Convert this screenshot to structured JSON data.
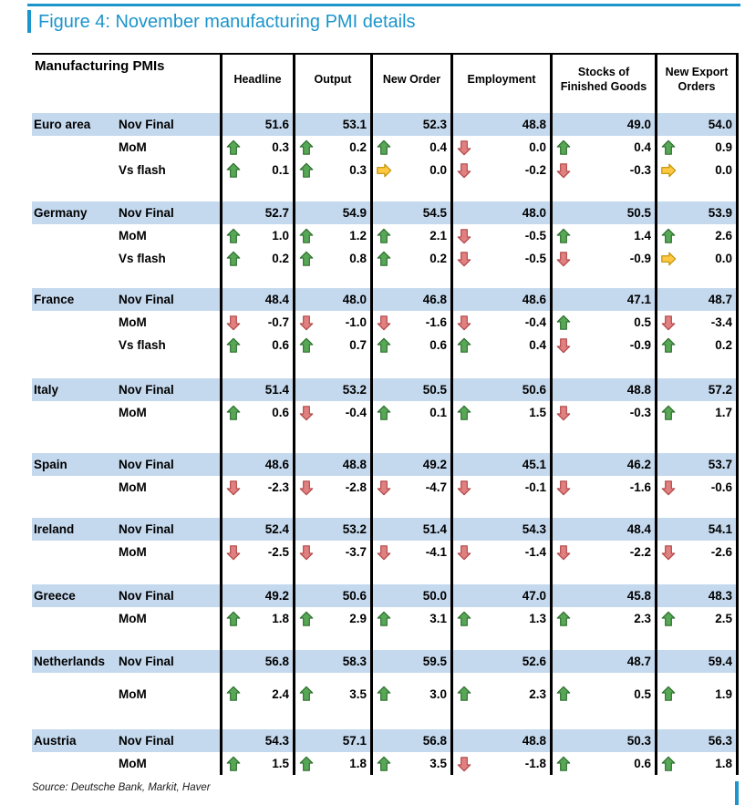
{
  "figure": {
    "title": "Figure 4: November manufacturing PMI details",
    "source": "Source: Deutsche Bank, Markit, Haver"
  },
  "colors": {
    "accent_blue": "#1b95cc",
    "row_stripe_blue": "#c5d9ee",
    "arrow_up_fill": "#57a757",
    "arrow_up_stroke": "#2e6f2e",
    "arrow_down_fill": "#e08080",
    "arrow_down_stroke": "#b34747",
    "arrow_right_fill": "#ffc843",
    "arrow_right_stroke": "#bf8f00"
  },
  "table": {
    "corner_label": "Manufacturing PMIs",
    "column_headers": [
      "Headline",
      "Output",
      "New Order",
      "Employment",
      "Stocks of\nFinished Goods",
      "New Export\nOrders"
    ],
    "blocks": [
      {
        "country": "Euro area",
        "rows": [
          {
            "label": "Nov Final",
            "highlight": true,
            "cells": [
              {
                "value": "51.6"
              },
              {
                "value": "53.1"
              },
              {
                "value": "52.3"
              },
              {
                "value": "48.8"
              },
              {
                "value": "49.0"
              },
              {
                "value": "54.0"
              }
            ]
          },
          {
            "label": "MoM",
            "cells": [
              {
                "arrow": "up",
                "value": "0.3"
              },
              {
                "arrow": "up",
                "value": "0.2"
              },
              {
                "arrow": "up",
                "value": "0.4"
              },
              {
                "arrow": "down",
                "value": "0.0"
              },
              {
                "arrow": "up",
                "value": "0.4"
              },
              {
                "arrow": "up",
                "value": "0.9"
              }
            ]
          },
          {
            "label": "Vs flash",
            "cells": [
              {
                "arrow": "up",
                "value": "0.1"
              },
              {
                "arrow": "up",
                "value": "0.3"
              },
              {
                "arrow": "right",
                "value": "0.0"
              },
              {
                "arrow": "down",
                "value": "-0.2"
              },
              {
                "arrow": "down",
                "value": "-0.3"
              },
              {
                "arrow": "right",
                "value": "0.0"
              }
            ]
          }
        ]
      },
      {
        "country": "Germany",
        "rows": [
          {
            "label": "Nov Final",
            "highlight": true,
            "cells": [
              {
                "value": "52.7"
              },
              {
                "value": "54.9"
              },
              {
                "value": "54.5"
              },
              {
                "value": "48.0"
              },
              {
                "value": "50.5"
              },
              {
                "value": "53.9"
              }
            ]
          },
          {
            "label": "MoM",
            "cells": [
              {
                "arrow": "up",
                "value": "1.0"
              },
              {
                "arrow": "up",
                "value": "1.2"
              },
              {
                "arrow": "up",
                "value": "2.1"
              },
              {
                "arrow": "down",
                "value": "-0.5"
              },
              {
                "arrow": "up",
                "value": "1.4"
              },
              {
                "arrow": "up",
                "value": "2.6"
              }
            ]
          },
          {
            "label": "Vs flash",
            "cells": [
              {
                "arrow": "up",
                "value": "0.2"
              },
              {
                "arrow": "up",
                "value": "0.8"
              },
              {
                "arrow": "up",
                "value": "0.2"
              },
              {
                "arrow": "down",
                "value": "-0.5"
              },
              {
                "arrow": "down",
                "value": "-0.9"
              },
              {
                "arrow": "right",
                "value": "0.0"
              }
            ]
          }
        ]
      },
      {
        "country": "France",
        "rows": [
          {
            "label": "Nov Final",
            "highlight": true,
            "cells": [
              {
                "value": "48.4"
              },
              {
                "value": "48.0"
              },
              {
                "value": "46.8"
              },
              {
                "value": "48.6"
              },
              {
                "value": "47.1"
              },
              {
                "value": "48.7"
              }
            ]
          },
          {
            "label": "MoM",
            "cells": [
              {
                "arrow": "down",
                "value": "-0.7"
              },
              {
                "arrow": "down",
                "value": "-1.0"
              },
              {
                "arrow": "down",
                "value": "-1.6"
              },
              {
                "arrow": "down",
                "value": "-0.4"
              },
              {
                "arrow": "up",
                "value": "0.5"
              },
              {
                "arrow": "down",
                "value": "-3.4"
              }
            ]
          },
          {
            "label": "Vs flash",
            "cells": [
              {
                "arrow": "up",
                "value": "0.6"
              },
              {
                "arrow": "up",
                "value": "0.7"
              },
              {
                "arrow": "up",
                "value": "0.6"
              },
              {
                "arrow": "up",
                "value": "0.4"
              },
              {
                "arrow": "down",
                "value": "-0.9"
              },
              {
                "arrow": "up",
                "value": "0.2"
              }
            ]
          }
        ]
      },
      {
        "country": "Italy",
        "rows": [
          {
            "label": "Nov Final",
            "highlight": true,
            "cells": [
              {
                "value": "51.4"
              },
              {
                "value": "53.2"
              },
              {
                "value": "50.5"
              },
              {
                "value": "50.6"
              },
              {
                "value": "48.8"
              },
              {
                "value": "57.2"
              }
            ]
          },
          {
            "label": "MoM",
            "cells": [
              {
                "arrow": "up",
                "value": "0.6"
              },
              {
                "arrow": "down",
                "value": "-0.4"
              },
              {
                "arrow": "up",
                "value": "0.1"
              },
              {
                "arrow": "up",
                "value": "1.5"
              },
              {
                "arrow": "down",
                "value": "-0.3"
              },
              {
                "arrow": "up",
                "value": "1.7"
              }
            ]
          }
        ]
      },
      {
        "country": "Spain",
        "rows": [
          {
            "label": "Nov Final",
            "highlight": true,
            "cells": [
              {
                "value": "48.6"
              },
              {
                "value": "48.8"
              },
              {
                "value": "49.2"
              },
              {
                "value": "45.1"
              },
              {
                "value": "46.2"
              },
              {
                "value": "53.7"
              }
            ]
          },
          {
            "label": "MoM",
            "cells": [
              {
                "arrow": "down",
                "value": "-2.3"
              },
              {
                "arrow": "down",
                "value": "-2.8"
              },
              {
                "arrow": "down",
                "value": "-4.7"
              },
              {
                "arrow": "down",
                "value": "-0.1"
              },
              {
                "arrow": "down",
                "value": "-1.6"
              },
              {
                "arrow": "down",
                "value": "-0.6"
              }
            ]
          }
        ]
      },
      {
        "country": "Ireland",
        "rows": [
          {
            "label": "Nov Final",
            "highlight": true,
            "cells": [
              {
                "value": "52.4"
              },
              {
                "value": "53.2"
              },
              {
                "value": "51.4"
              },
              {
                "value": "54.3"
              },
              {
                "value": "48.4"
              },
              {
                "value": "54.1"
              }
            ]
          },
          {
            "label": "MoM",
            "cells": [
              {
                "arrow": "down",
                "value": "-2.5"
              },
              {
                "arrow": "down",
                "value": "-3.7"
              },
              {
                "arrow": "down",
                "value": "-4.1"
              },
              {
                "arrow": "down",
                "value": "-1.4"
              },
              {
                "arrow": "down",
                "value": "-2.2"
              },
              {
                "arrow": "down",
                "value": "-2.6"
              }
            ]
          }
        ]
      },
      {
        "country": "Greece",
        "rows": [
          {
            "label": "Nov Final",
            "highlight": true,
            "cells": [
              {
                "value": "49.2"
              },
              {
                "value": "50.6"
              },
              {
                "value": "50.0"
              },
              {
                "value": "47.0"
              },
              {
                "value": "45.8"
              },
              {
                "value": "48.3"
              }
            ]
          },
          {
            "label": "MoM",
            "cells": [
              {
                "arrow": "up",
                "value": "1.8"
              },
              {
                "arrow": "up",
                "value": "2.9"
              },
              {
                "arrow": "up",
                "value": "3.1"
              },
              {
                "arrow": "up",
                "value": "1.3"
              },
              {
                "arrow": "up",
                "value": "2.3"
              },
              {
                "arrow": "up",
                "value": "2.5"
              }
            ]
          }
        ]
      },
      {
        "country": "Netherlands",
        "rows": [
          {
            "label": "Nov Final",
            "highlight": true,
            "cells": [
              {
                "value": "56.8"
              },
              {
                "value": "58.3"
              },
              {
                "value": "59.5"
              },
              {
                "value": "52.6"
              },
              {
                "value": "48.7"
              },
              {
                "value": "59.4"
              }
            ]
          },
          {
            "label": "MoM",
            "tall": true,
            "cells": [
              {
                "arrow": "up",
                "value": "2.4"
              },
              {
                "arrow": "up",
                "value": "3.5"
              },
              {
                "arrow": "up",
                "value": "3.0"
              },
              {
                "arrow": "up",
                "value": "2.3"
              },
              {
                "arrow": "up",
                "value": "0.5"
              },
              {
                "arrow": "up",
                "value": "1.9"
              }
            ]
          }
        ]
      },
      {
        "country": "Austria",
        "rows": [
          {
            "label": "Nov Final",
            "highlight": true,
            "cells": [
              {
                "value": "54.3"
              },
              {
                "value": "57.1"
              },
              {
                "value": "56.8"
              },
              {
                "value": "48.8"
              },
              {
                "value": "50.3"
              },
              {
                "value": "56.3"
              }
            ]
          },
          {
            "label": "MoM",
            "cells": [
              {
                "arrow": "up",
                "value": "1.5"
              },
              {
                "arrow": "up",
                "value": "1.8"
              },
              {
                "arrow": "up",
                "value": "3.5"
              },
              {
                "arrow": "down",
                "value": "-1.8"
              },
              {
                "arrow": "up",
                "value": "0.6"
              },
              {
                "arrow": "up",
                "value": "1.8"
              }
            ]
          }
        ]
      }
    ]
  }
}
